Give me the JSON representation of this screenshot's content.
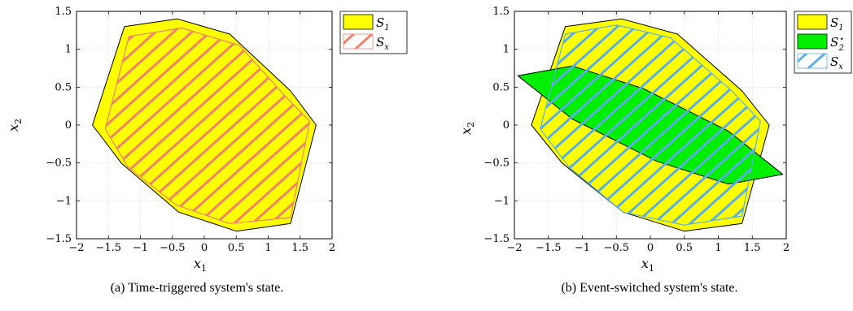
{
  "figure": {
    "captions": [
      "(a) Time-triggered system's state.",
      "(b) Event-switched system's state."
    ]
  },
  "colors": {
    "s1_fill": "#ffff00",
    "s2star_fill": "#00ee00",
    "hatch_a": "#f2826b",
    "hatch_b": "#5aaee8",
    "outline": "#000000"
  },
  "chart_data": [
    {
      "type": "area",
      "caption": "(a) Time-triggered system's state.",
      "xlabel": "x",
      "xlabel_sub": "1",
      "ylabel": "x",
      "ylabel_sub": "2",
      "xlim": [
        -2,
        2
      ],
      "ylim": [
        -1.5,
        1.5
      ],
      "xticks": [
        -2,
        -1.5,
        -1,
        -0.5,
        0,
        0.5,
        1,
        1.5,
        2
      ],
      "xtick_labels": [
        "−2",
        "−1.5",
        "−1",
        "−0.5",
        "0",
        "0.5",
        "1",
        "1.5",
        "2"
      ],
      "yticks": [
        -1.5,
        -1,
        -0.5,
        0,
        0.5,
        1,
        1.5
      ],
      "ytick_labels": [
        "−1.5",
        "−1",
        "−0.5",
        "0",
        "0.5",
        "1",
        "1.5"
      ],
      "grid": true,
      "legend_position": "top-right",
      "legend": [
        {
          "label": "S",
          "sub": "1",
          "sup": "",
          "style": "s1"
        },
        {
          "label": "S",
          "sub": "x",
          "sup": "",
          "style": "hatch_a"
        }
      ],
      "series": [
        {
          "name": "S1",
          "style": "s1",
          "polygon": [
            [
              -1.25,
              1.3
            ],
            [
              -0.42,
              1.4
            ],
            [
              0.4,
              1.2
            ],
            [
              1.35,
              0.45
            ],
            [
              1.75,
              0.0
            ],
            [
              1.35,
              -1.3
            ],
            [
              0.5,
              -1.4
            ],
            [
              -0.4,
              -1.15
            ],
            [
              -1.3,
              -0.5
            ],
            [
              -1.75,
              0.0
            ]
          ]
        },
        {
          "name": "Sx",
          "style": "hatch_a",
          "polygon": [
            [
              -1.18,
              1.17
            ],
            [
              -0.35,
              1.28
            ],
            [
              0.55,
              1.05
            ],
            [
              1.3,
              0.35
            ],
            [
              1.65,
              0.05
            ],
            [
              1.35,
              -1.22
            ],
            [
              0.4,
              -1.3
            ],
            [
              -0.45,
              -1.05
            ],
            [
              -1.2,
              -0.55
            ],
            [
              -1.55,
              -0.05
            ]
          ]
        }
      ]
    },
    {
      "type": "area",
      "caption": "(b) Event-switched system's state.",
      "xlabel": "x",
      "xlabel_sub": "1",
      "ylabel": "x",
      "ylabel_sub": "2",
      "xlim": [
        -2,
        2
      ],
      "ylim": [
        -1.5,
        1.5
      ],
      "xticks": [
        -2,
        -1.5,
        -1,
        -0.5,
        0,
        0.5,
        1,
        1.5,
        2
      ],
      "xtick_labels": [
        "−2",
        "−1.5",
        "−1",
        "−0.5",
        "0",
        "0.5",
        "1",
        "1.5",
        "2"
      ],
      "yticks": [
        -1.5,
        -1,
        -0.5,
        0,
        0.5,
        1,
        1.5
      ],
      "ytick_labels": [
        "−1.5",
        "−1",
        "−0.5",
        "0",
        "0.5",
        "1",
        "1.5"
      ],
      "grid": true,
      "legend_position": "top-right",
      "legend": [
        {
          "label": "S",
          "sub": "1",
          "sup": "",
          "style": "s1"
        },
        {
          "label": "S",
          "sub": "2",
          "sup": "⋆",
          "style": "s2star"
        },
        {
          "label": "S",
          "sub": "x",
          "sup": "",
          "style": "hatch_b"
        }
      ],
      "series": [
        {
          "name": "S1",
          "style": "s1",
          "polygon": [
            [
              -1.25,
              1.3
            ],
            [
              -0.42,
              1.4
            ],
            [
              0.4,
              1.2
            ],
            [
              1.35,
              0.45
            ],
            [
              1.75,
              0.0
            ],
            [
              1.35,
              -1.3
            ],
            [
              0.5,
              -1.4
            ],
            [
              -0.4,
              -1.15
            ],
            [
              -1.3,
              -0.5
            ],
            [
              -1.75,
              0.0
            ]
          ]
        },
        {
          "name": "S2*",
          "style": "s2star",
          "polygon": [
            [
              -1.95,
              0.65
            ],
            [
              -1.15,
              0.78
            ],
            [
              -0.1,
              0.48
            ],
            [
              1.15,
              -0.08
            ],
            [
              1.95,
              -0.65
            ],
            [
              1.15,
              -0.78
            ],
            [
              0.1,
              -0.48
            ],
            [
              -1.15,
              0.08
            ]
          ]
        },
        {
          "name": "Sx",
          "style": "hatch_b",
          "polygon": [
            [
              -1.25,
              1.2
            ],
            [
              -0.5,
              1.32
            ],
            [
              0.3,
              1.15
            ],
            [
              1.2,
              0.45
            ],
            [
              1.62,
              0.05
            ],
            [
              1.35,
              -1.2
            ],
            [
              0.5,
              -1.32
            ],
            [
              -0.4,
              -1.15
            ],
            [
              -1.2,
              -0.55
            ],
            [
              -1.62,
              -0.05
            ]
          ]
        }
      ]
    }
  ]
}
